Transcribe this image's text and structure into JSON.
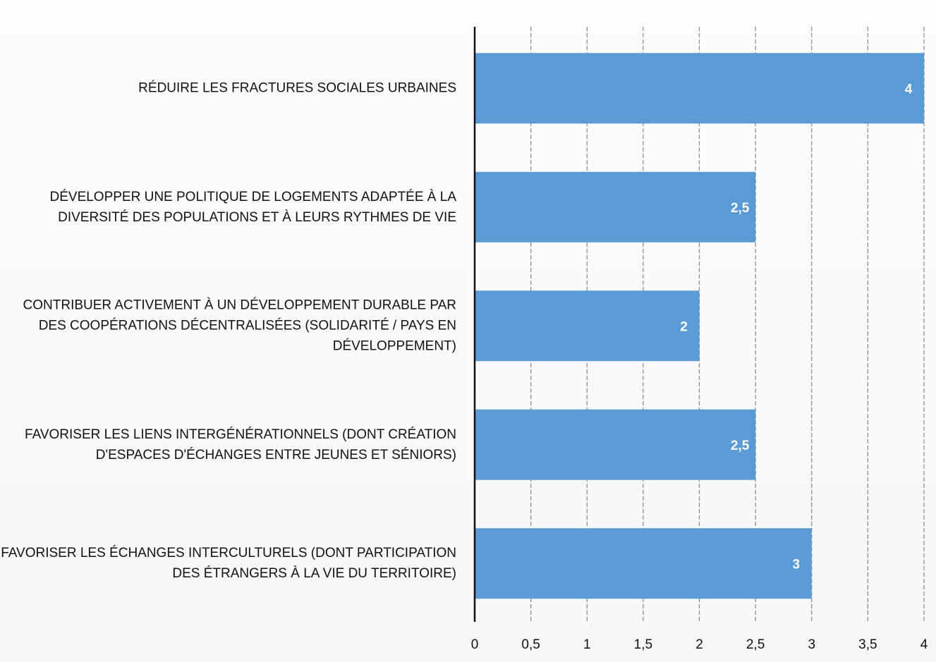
{
  "chart_data": {
    "type": "bar",
    "orientation": "horizontal",
    "categories": [
      "RÉDUIRE LES FRACTURES SOCIALES URBAINES",
      "DÉVELOPPER UNE POLITIQUE DE LOGEMENTS ADAPTÉE À LA DIVERSITÉ DES POPULATIONS ET À LEURS RYTHMES DE VIE",
      "CONTRIBUER ACTIVEMENT À UN DÉVELOPPEMENT DURABLE PAR DES COOPÉRATIONS DÉCENTRALISÉES (SOLIDARITÉ / PAYS EN DÉVELOPPEMENT)",
      "FAVORISER LES LIENS INTERGÉNÉRATIONNELS (DONT CRÉATION D'ESPACES D'ÉCHANGES ENTRE JEUNES ET SÉNIORS)",
      "FAVORISER LES ÉCHANGES INTERCULTURELS (DONT PARTICIPATION DES ÉTRANGERS À LA VIE DU TERRITOIRE)"
    ],
    "values": [
      4,
      2.5,
      2,
      2.5,
      3
    ],
    "data_labels": [
      "4",
      "2,5",
      "2",
      "2,5",
      "3"
    ],
    "xlim": [
      0,
      4
    ],
    "x_ticks": [
      0,
      0.5,
      1,
      1.5,
      2,
      2.5,
      3,
      3.5,
      4
    ],
    "x_tick_labels": [
      "0",
      "0,5",
      "1",
      "1,5",
      "2",
      "2,5",
      "3",
      "3,5",
      "4"
    ],
    "grid": true,
    "legend": "none",
    "title": "",
    "xlabel": "",
    "ylabel": "",
    "bar_color": "#5b9bd5",
    "label_color": "#ffffff",
    "grid_color": "#555555"
  }
}
